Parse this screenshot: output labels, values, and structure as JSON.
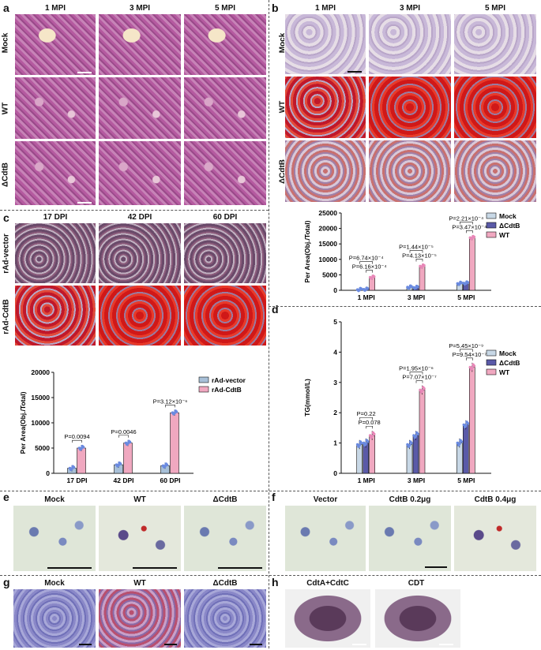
{
  "panels": {
    "a": {
      "label": "a",
      "cols": [
        "1 MPI",
        "3 MPI",
        "5 MPI"
      ],
      "rows": [
        "Mock",
        "WT",
        "ΔCdtB"
      ]
    },
    "b": {
      "label": "b",
      "cols": [
        "1 MPI",
        "3 MPI",
        "5 MPI"
      ],
      "rows": [
        "Mock",
        "WT",
        "ΔCdtB"
      ]
    },
    "c": {
      "label": "c",
      "cols": [
        "17 DPI",
        "42 DPI",
        "60 DPI"
      ],
      "rows": [
        "rAd-vector",
        "rAd-CdtB"
      ]
    },
    "d": {
      "label": "d"
    },
    "e": {
      "label": "e",
      "cols": [
        "Mock",
        "WT",
        "ΔCdtB"
      ]
    },
    "f": {
      "label": "f",
      "cols": [
        "Vector",
        "CdtB 0.2μg",
        "CdtB 0.4μg"
      ]
    },
    "g": {
      "label": "g",
      "cols": [
        "Mock",
        "WT",
        "ΔCdtB"
      ]
    },
    "h": {
      "label": "h",
      "cols": [
        "CdtA+CdtC",
        "CDT"
      ]
    }
  },
  "colors": {
    "mock": "#c8d8e6",
    "dcdtb": "#5a5aa8",
    "wt": "#f0a8c0",
    "vector": "#a8c0d8",
    "cdtb": "#f0a8c0",
    "dot_mock": "#6a8ae0",
    "dot_wt": "#e888b8"
  },
  "chart_data": [
    {
      "panel": "b",
      "type": "bar",
      "categories": [
        "1 MPI",
        "3 MPI",
        "5 MPI"
      ],
      "ylabel": "Per Area(Obj./Total)",
      "ylim": [
        0,
        25000
      ],
      "yticks": [
        "0",
        "5000",
        "10000",
        "15000",
        "20000",
        "25000"
      ],
      "series": [
        {
          "name": "Mock",
          "values": [
            200,
            1000,
            2200
          ]
        },
        {
          "name": "ΔCdtB",
          "values": [
            300,
            900,
            2300
          ]
        },
        {
          "name": "WT",
          "values": [
            4200,
            7800,
            17000
          ]
        }
      ],
      "annotations": [
        "P=6.16×10⁻⁴",
        "P=6.74×10⁻⁴",
        "P=4.13×10⁻⁵",
        "P=1.44×10⁻⁵",
        "P=3.47×10⁻⁴",
        "P=2.21×10⁻⁴"
      ],
      "legend": "top-right"
    },
    {
      "panel": "c",
      "type": "bar",
      "categories": [
        "17 DPI",
        "42 DPI",
        "60 DPI"
      ],
      "ylabel": "Per Area(Obj./Total)",
      "ylim": [
        0,
        20000
      ],
      "yticks": [
        "0",
        "5000",
        "10000",
        "15000",
        "20000"
      ],
      "series": [
        {
          "name": "rAd-vector",
          "values": [
            1000,
            1700,
            1500
          ]
        },
        {
          "name": "rAd-CdtB",
          "values": [
            5000,
            6000,
            12000
          ]
        }
      ],
      "annotations": [
        "P=0.0094",
        "P=0.0046",
        "P=3.12×10⁻⁶"
      ],
      "legend": "top-right"
    },
    {
      "panel": "d",
      "type": "bar",
      "categories": [
        "1 MPI",
        "3 MPI",
        "5 MPI"
      ],
      "ylabel": "TG(mmol/L)",
      "ylim": [
        0,
        5
      ],
      "yticks": [
        "0",
        "1",
        "2",
        "3",
        "4",
        "5"
      ],
      "series": [
        {
          "name": "Mock",
          "values": [
            0.95,
            0.95,
            1.0
          ]
        },
        {
          "name": "ΔCdtB",
          "values": [
            1.0,
            1.25,
            1.6
          ]
        },
        {
          "name": "WT",
          "values": [
            1.25,
            2.75,
            3.5
          ]
        }
      ],
      "annotations": [
        "P=0.078",
        "P=0.22",
        "P=7.07×10⁻⁷",
        "P=1.95×10⁻⁶",
        "P=9.54×10⁻⁷",
        "P=5.45×10⁻⁹"
      ],
      "legend": "top-right"
    }
  ]
}
